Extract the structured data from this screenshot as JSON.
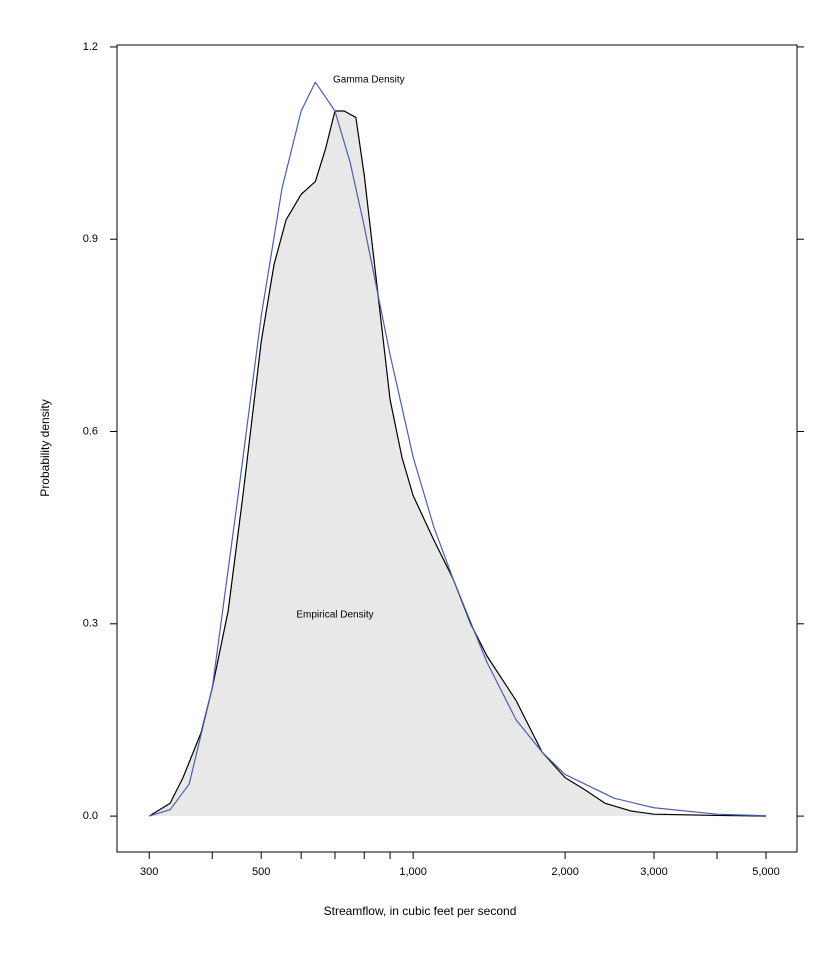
{
  "chart_data": {
    "type": "density",
    "x_label": "Streamflow, in cubic feet per second",
    "y_label": "Probability density",
    "log_x": true,
    "xlim": [
      259,
      5760
    ],
    "xticks": [
      300,
      500,
      {
        "value": 1000,
        "label": "1,000"
      },
      {
        "value": 2000,
        "label": "2,000"
      },
      {
        "value": 3000,
        "label": "3,000"
      },
      {
        "value": 5000,
        "label": "5,000"
      }
    ],
    "xminorticks": [
      400,
      600,
      700,
      800,
      900,
      4000
    ],
    "ylim": [
      -0.056,
      1.203
    ],
    "yticks": [
      {
        "value": 0,
        "label": "0.0"
      },
      0.3,
      0.6,
      0.9,
      1.2
    ],
    "series": [
      {
        "name": "Empirical Density",
        "color": "#000000",
        "fill": "#e8e8e8",
        "x": [
          300,
          330,
          350,
          380,
          400,
          430,
          460,
          500,
          530,
          560,
          600,
          640,
          670,
          700,
          730,
          770,
          800,
          850,
          900,
          950,
          1000,
          1100,
          1200,
          1300,
          1400,
          1600,
          1800,
          2000,
          2200,
          2400,
          2700,
          3000,
          4000,
          5000
        ],
        "values": [
          0,
          0.02,
          0.06,
          0.13,
          0.2,
          0.32,
          0.5,
          0.74,
          0.86,
          0.93,
          0.97,
          0.99,
          1.04,
          1.1,
          1.1,
          1.09,
          1.0,
          0.82,
          0.65,
          0.56,
          0.5,
          0.43,
          0.37,
          0.3,
          0.25,
          0.18,
          0.1,
          0.06,
          0.04,
          0.02,
          0.008,
          0.003,
          0.001,
          0
        ]
      },
      {
        "name": "Gamma Density",
        "color": "#4a5fb0",
        "x": [
          300,
          330,
          360,
          400,
          450,
          500,
          550,
          600,
          640,
          700,
          750,
          800,
          900,
          1000,
          1100,
          1200,
          1400,
          1600,
          1800,
          2000,
          2500,
          3000,
          4000,
          5000
        ],
        "values": [
          0,
          0.01,
          0.05,
          0.2,
          0.5,
          0.78,
          0.98,
          1.1,
          1.145,
          1.1,
          1.02,
          0.92,
          0.72,
          0.56,
          0.45,
          0.37,
          0.24,
          0.15,
          0.1,
          0.065,
          0.028,
          0.013,
          0.003,
          0.0006
        ]
      }
    ]
  }
}
